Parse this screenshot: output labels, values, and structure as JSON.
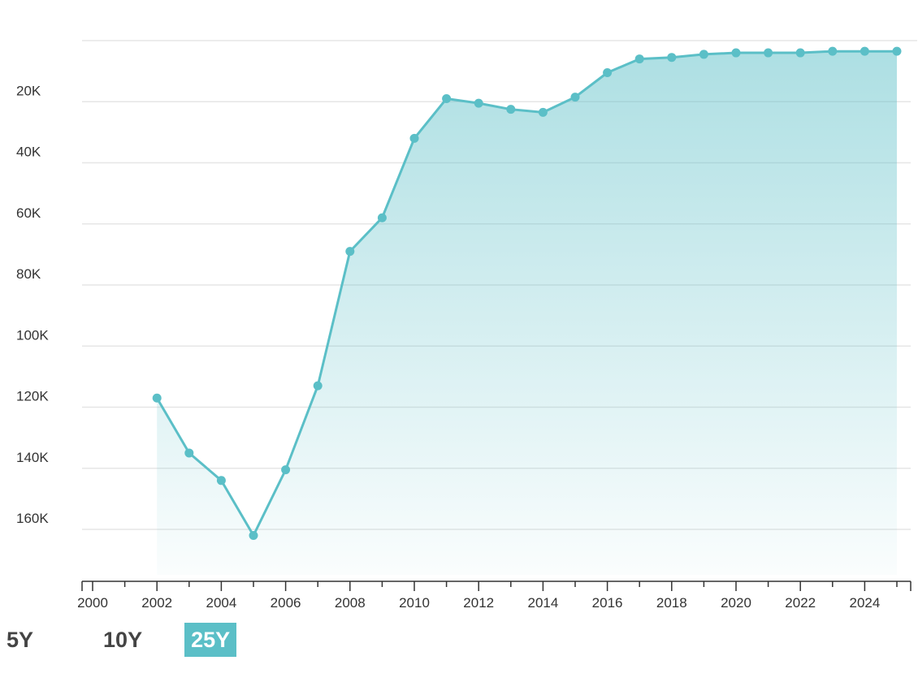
{
  "chart_data": {
    "type": "area",
    "title": "",
    "xlabel": "",
    "ylabel": "",
    "y_axis_inverted": true,
    "ylim": [
      0,
      175000
    ],
    "xlim": [
      1999.7,
      2025.4
    ],
    "grid": true,
    "colors": {
      "line": "#5bbfc7",
      "fill": "#5bbfc7",
      "grid": "#e6e6e6",
      "axis": "#333333"
    },
    "y_ticks": [
      {
        "value": 20000,
        "label": "20K"
      },
      {
        "value": 40000,
        "label": "40K"
      },
      {
        "value": 60000,
        "label": "60K"
      },
      {
        "value": 80000,
        "label": "80K"
      },
      {
        "value": 100000,
        "label": "100K"
      },
      {
        "value": 120000,
        "label": "120K"
      },
      {
        "value": 140000,
        "label": "140K"
      },
      {
        "value": 160000,
        "label": "160K"
      }
    ],
    "x_ticks": [
      {
        "value": 2000,
        "label": "2000"
      },
      {
        "value": 2002,
        "label": "2002"
      },
      {
        "value": 2004,
        "label": "2004"
      },
      {
        "value": 2006,
        "label": "2006"
      },
      {
        "value": 2008,
        "label": "2008"
      },
      {
        "value": 2010,
        "label": "2010"
      },
      {
        "value": 2012,
        "label": "2012"
      },
      {
        "value": 2014,
        "label": "2014"
      },
      {
        "value": 2016,
        "label": "2016"
      },
      {
        "value": 2018,
        "label": "2018"
      },
      {
        "value": 2020,
        "label": "2020"
      },
      {
        "value": 2022,
        "label": "2022"
      },
      {
        "value": 2024,
        "label": "2024"
      }
    ],
    "x": [
      2002,
      2003,
      2004,
      2005,
      2006,
      2007,
      2008,
      2009,
      2010,
      2011,
      2012,
      2013,
      2014,
      2015,
      2016,
      2017,
      2018,
      2019,
      2020,
      2021,
      2022,
      2023,
      2024,
      2025
    ],
    "values": [
      117000,
      135000,
      144000,
      162000,
      140500,
      113000,
      69000,
      58000,
      32000,
      19000,
      20500,
      22500,
      23500,
      18500,
      10500,
      6000,
      5500,
      4500,
      4000,
      4000,
      4000,
      3500,
      3500,
      3500
    ]
  },
  "range_selector": {
    "options": [
      "5Y",
      "10Y",
      "25Y"
    ],
    "active": "25Y"
  }
}
